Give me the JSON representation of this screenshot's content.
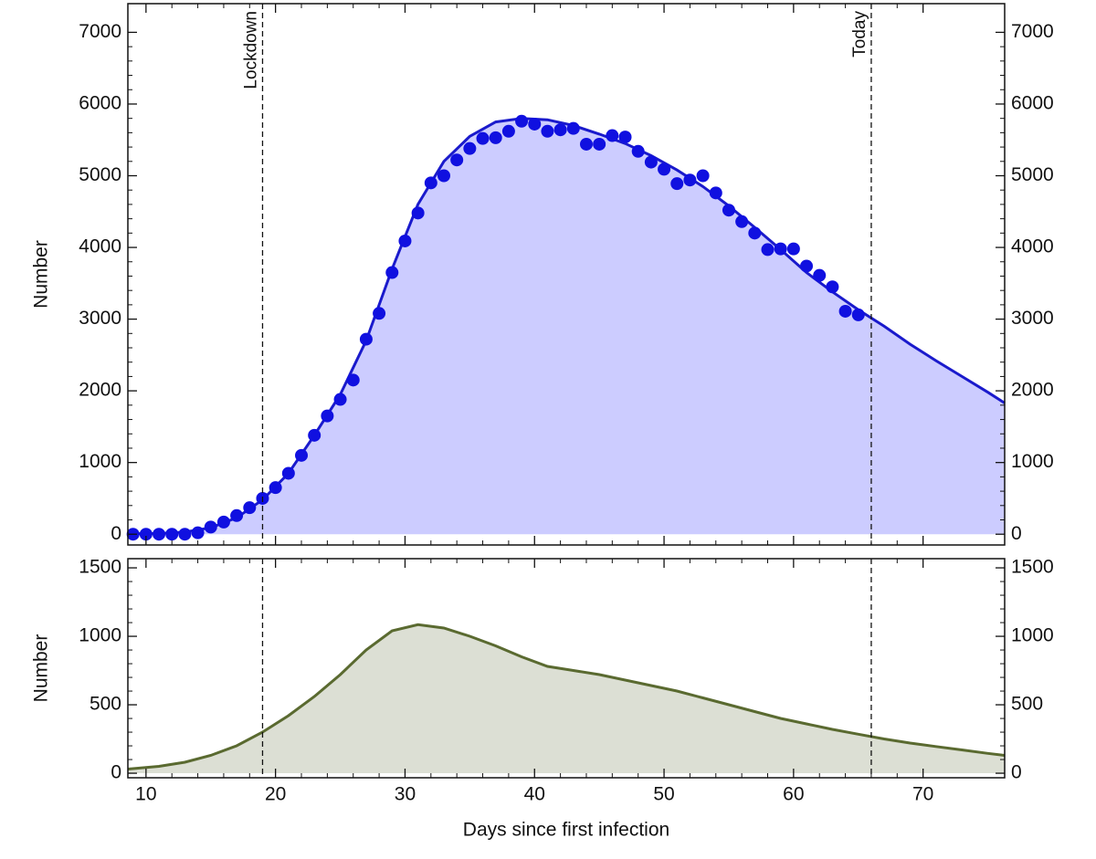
{
  "chart_data": [
    {
      "type": "line",
      "ylabel": "Number",
      "xlim": [
        8.6,
        76.3
      ],
      "ylim": [
        -150,
        7400
      ],
      "xticks": [
        10,
        20,
        30,
        40,
        50,
        60,
        70
      ],
      "yticks": [
        0,
        1000,
        2000,
        3000,
        4000,
        5000,
        6000,
        7000
      ],
      "annotations": [
        {
          "x": 19,
          "label": "Lockdown"
        },
        {
          "x": 66,
          "label": "Today"
        }
      ],
      "series": [
        {
          "mode": "area",
          "color": "#1a1acc",
          "fill": "#ccccff",
          "x": [
            8.6,
            11,
            13,
            15,
            17,
            19,
            21,
            23,
            25,
            27,
            29,
            31,
            33,
            35,
            37,
            39,
            41,
            43,
            45,
            47,
            49,
            51,
            53,
            55,
            57,
            59,
            61,
            63,
            65,
            67,
            69,
            71,
            73,
            75,
            76.3
          ],
          "values": [
            5,
            10,
            30,
            90,
            230,
            480,
            850,
            1380,
            1950,
            2700,
            3700,
            4600,
            5200,
            5550,
            5750,
            5800,
            5780,
            5700,
            5580,
            5450,
            5280,
            5080,
            4850,
            4580,
            4280,
            3970,
            3650,
            3380,
            3130,
            2900,
            2650,
            2420,
            2200,
            1980,
            1830
          ]
        },
        {
          "mode": "markers",
          "color": "#1010e0",
          "x": [
            9,
            10,
            11,
            12,
            13,
            14,
            15,
            16,
            17,
            18,
            19,
            20,
            21,
            22,
            23,
            24,
            25,
            26,
            27,
            28,
            29,
            30,
            31,
            32,
            33,
            34,
            35,
            36,
            37,
            38,
            39,
            40,
            41,
            42,
            43,
            44,
            45,
            46,
            47,
            48,
            49,
            50,
            51,
            52,
            53,
            54,
            55,
            56,
            57,
            58,
            59,
            60,
            61,
            62,
            63,
            64,
            65
          ],
          "values": [
            0,
            0,
            0,
            0,
            0,
            20,
            100,
            170,
            260,
            370,
            500,
            650,
            850,
            1100,
            1380,
            1650,
            1880,
            2150,
            2720,
            3080,
            3650,
            4090,
            4480,
            4900,
            5000,
            5220,
            5380,
            5520,
            5530,
            5620,
            5760,
            5720,
            5620,
            5640,
            5660,
            5440,
            5440,
            5560,
            5540,
            5340,
            5190,
            5090,
            4890,
            4940,
            5000,
            4760,
            4520,
            4360,
            4200,
            3970,
            3980,
            3980,
            3740,
            3610,
            3450,
            3110,
            3060
          ]
        }
      ]
    },
    {
      "type": "line",
      "ylabel": "Number",
      "xlabel": "Days since first infection",
      "xlim": [
        8.6,
        76.3
      ],
      "ylim": [
        -33,
        1567
      ],
      "xticks": [
        10,
        20,
        30,
        40,
        50,
        60,
        70
      ],
      "yticks": [
        0,
        500,
        1000,
        1500
      ],
      "series": [
        {
          "mode": "area",
          "color": "#5a6a30",
          "fill": "#dcdfd4",
          "x": [
            8.6,
            11,
            13,
            15,
            17,
            19,
            21,
            23,
            25,
            27,
            29,
            31,
            33,
            35,
            37,
            39,
            41,
            43,
            45,
            47,
            49,
            51,
            53,
            55,
            57,
            59,
            61,
            63,
            65,
            67,
            69,
            71,
            73,
            75,
            76.3
          ],
          "values": [
            30,
            50,
            80,
            130,
            200,
            300,
            420,
            560,
            720,
            900,
            1040,
            1085,
            1060,
            1000,
            930,
            850,
            780,
            750,
            720,
            680,
            640,
            600,
            550,
            500,
            450,
            400,
            360,
            320,
            285,
            250,
            220,
            195,
            170,
            145,
            130
          ]
        }
      ]
    }
  ]
}
